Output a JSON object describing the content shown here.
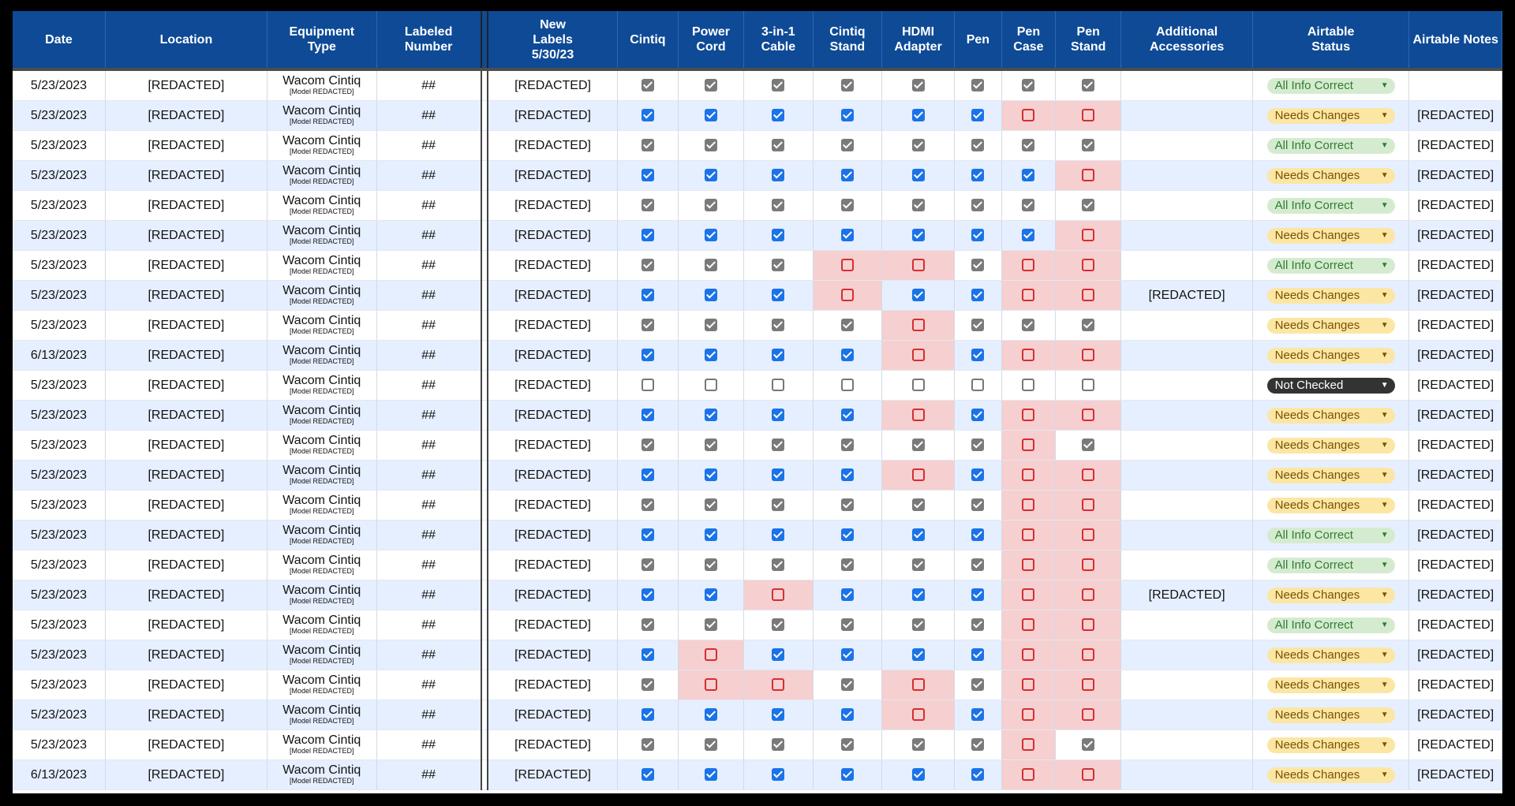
{
  "headers": [
    "Date",
    "Location",
    "Equipment\nType",
    "Labeled\nNumber",
    "New\nLabels\n5/30/23",
    "Cintiq",
    "Power\nCord",
    "3-in-1\nCable",
    "Cintiq\nStand",
    "HDMI\nAdapter",
    "Pen",
    "Pen\nCase",
    "Pen\nStand",
    "Additional\nAccessories",
    "Airtable\nStatus",
    "Airtable Notes"
  ],
  "colors": {
    "header_bg": "#0e4a96",
    "even_row": "#e6efff",
    "missing_cell": "#f6cfd0",
    "check_gray": "#7a7a7a",
    "check_blue": "#1a73e8",
    "missing_box": "#d32f2f"
  },
  "status_styles": {
    "All Info Correct": "correct",
    "Needs Changes": "changes",
    "Not Checked": "notchecked"
  },
  "rows": [
    {
      "date": "5/23/2023",
      "location": "[REDACTED]",
      "equipment": "Wacom Cintiq",
      "model": "[Model REDACTED]",
      "number": "##",
      "new_label": "[REDACTED]",
      "checks": [
        1,
        1,
        1,
        1,
        1,
        1,
        1,
        1
      ],
      "accessories": "",
      "status": "All Info Correct",
      "notes": ""
    },
    {
      "date": "5/23/2023",
      "location": "[REDACTED]",
      "equipment": "Wacom Cintiq",
      "model": "[Model REDACTED]",
      "number": "##",
      "new_label": "[REDACTED]",
      "checks": [
        1,
        1,
        1,
        1,
        1,
        1,
        0,
        0
      ],
      "accessories": "",
      "status": "Needs Changes",
      "notes": "[REDACTED]"
    },
    {
      "date": "5/23/2023",
      "location": "[REDACTED]",
      "equipment": "Wacom Cintiq",
      "model": "[Model REDACTED]",
      "number": "##",
      "new_label": "[REDACTED]",
      "checks": [
        1,
        1,
        1,
        1,
        1,
        1,
        1,
        1
      ],
      "accessories": "",
      "status": "All Info Correct",
      "notes": "[REDACTED]"
    },
    {
      "date": "5/23/2023",
      "location": "[REDACTED]",
      "equipment": "Wacom Cintiq",
      "model": "[Model REDACTED]",
      "number": "##",
      "new_label": "[REDACTED]",
      "checks": [
        1,
        1,
        1,
        1,
        1,
        1,
        1,
        0
      ],
      "accessories": "",
      "status": "Needs Changes",
      "notes": "[REDACTED]"
    },
    {
      "date": "5/23/2023",
      "location": "[REDACTED]",
      "equipment": "Wacom Cintiq",
      "model": "[Model REDACTED]",
      "number": "##",
      "new_label": "[REDACTED]",
      "checks": [
        1,
        1,
        1,
        1,
        1,
        1,
        1,
        1
      ],
      "accessories": "",
      "status": "All Info Correct",
      "notes": "[REDACTED]"
    },
    {
      "date": "5/23/2023",
      "location": "[REDACTED]",
      "equipment": "Wacom Cintiq",
      "model": "[Model REDACTED]",
      "number": "##",
      "new_label": "[REDACTED]",
      "checks": [
        1,
        1,
        1,
        1,
        1,
        1,
        1,
        0
      ],
      "accessories": "",
      "status": "Needs Changes",
      "notes": "[REDACTED]"
    },
    {
      "date": "5/23/2023",
      "location": "[REDACTED]",
      "equipment": "Wacom Cintiq",
      "model": "[Model REDACTED]",
      "number": "##",
      "new_label": "[REDACTED]",
      "checks": [
        1,
        1,
        1,
        0,
        0,
        1,
        0,
        0
      ],
      "accessories": "",
      "status": "All Info Correct",
      "notes": "[REDACTED]"
    },
    {
      "date": "5/23/2023",
      "location": "[REDACTED]",
      "equipment": "Wacom Cintiq",
      "model": "[Model REDACTED]",
      "number": "##",
      "new_label": "[REDACTED]",
      "checks": [
        1,
        1,
        1,
        0,
        1,
        1,
        0,
        0
      ],
      "accessories": "[REDACTED]",
      "status": "Needs Changes",
      "notes": "[REDACTED]"
    },
    {
      "date": "5/23/2023",
      "location": "[REDACTED]",
      "equipment": "Wacom Cintiq",
      "model": "[Model REDACTED]",
      "number": "##",
      "new_label": "[REDACTED]",
      "checks": [
        1,
        1,
        1,
        1,
        0,
        1,
        1,
        1
      ],
      "accessories": "",
      "status": "Needs Changes",
      "notes": "[REDACTED]"
    },
    {
      "date": "6/13/2023",
      "location": "[REDACTED]",
      "equipment": "Wacom Cintiq",
      "model": "[Model REDACTED]",
      "number": "##",
      "new_label": "[REDACTED]",
      "checks": [
        1,
        1,
        1,
        1,
        0,
        1,
        0,
        0
      ],
      "accessories": "",
      "status": "Needs Changes",
      "notes": "[REDACTED]"
    },
    {
      "date": "5/23/2023",
      "location": "[REDACTED]",
      "equipment": "Wacom Cintiq",
      "model": "[Model REDACTED]",
      "number": "##",
      "new_label": "[REDACTED]",
      "checks": [
        -1,
        -1,
        -1,
        -1,
        -1,
        -1,
        -1,
        -1
      ],
      "accessories": "",
      "status": "Not Checked",
      "notes": "[REDACTED]"
    },
    {
      "date": "5/23/2023",
      "location": "[REDACTED]",
      "equipment": "Wacom Cintiq",
      "model": "[Model REDACTED]",
      "number": "##",
      "new_label": "[REDACTED]",
      "checks": [
        1,
        1,
        1,
        1,
        0,
        1,
        0,
        0
      ],
      "accessories": "",
      "status": "Needs Changes",
      "notes": "[REDACTED]"
    },
    {
      "date": "5/23/2023",
      "location": "[REDACTED]",
      "equipment": "Wacom Cintiq",
      "model": "[Model REDACTED]",
      "number": "##",
      "new_label": "[REDACTED]",
      "checks": [
        1,
        1,
        1,
        1,
        1,
        1,
        0,
        1
      ],
      "accessories": "",
      "status": "Needs Changes",
      "notes": "[REDACTED]"
    },
    {
      "date": "5/23/2023",
      "location": "[REDACTED]",
      "equipment": "Wacom Cintiq",
      "model": "[Model REDACTED]",
      "number": "##",
      "new_label": "[REDACTED]",
      "checks": [
        1,
        1,
        1,
        1,
        0,
        1,
        0,
        0
      ],
      "accessories": "",
      "status": "Needs Changes",
      "notes": "[REDACTED]"
    },
    {
      "date": "5/23/2023",
      "location": "[REDACTED]",
      "equipment": "Wacom Cintiq",
      "model": "[Model REDACTED]",
      "number": "##",
      "new_label": "[REDACTED]",
      "checks": [
        1,
        1,
        1,
        1,
        1,
        1,
        0,
        0
      ],
      "accessories": "",
      "status": "Needs Changes",
      "notes": "[REDACTED]"
    },
    {
      "date": "5/23/2023",
      "location": "[REDACTED]",
      "equipment": "Wacom Cintiq",
      "model": "[Model REDACTED]",
      "number": "##",
      "new_label": "[REDACTED]",
      "checks": [
        1,
        1,
        1,
        1,
        1,
        1,
        0,
        0
      ],
      "accessories": "",
      "status": "All Info Correct",
      "notes": "[REDACTED]"
    },
    {
      "date": "5/23/2023",
      "location": "[REDACTED]",
      "equipment": "Wacom Cintiq",
      "model": "[Model REDACTED]",
      "number": "##",
      "new_label": "[REDACTED]",
      "checks": [
        1,
        1,
        1,
        1,
        1,
        1,
        0,
        0
      ],
      "accessories": "",
      "status": "All Info Correct",
      "notes": "[REDACTED]"
    },
    {
      "date": "5/23/2023",
      "location": "[REDACTED]",
      "equipment": "Wacom Cintiq",
      "model": "[Model REDACTED]",
      "number": "##",
      "new_label": "[REDACTED]",
      "checks": [
        1,
        1,
        0,
        1,
        1,
        1,
        0,
        0
      ],
      "accessories": "[REDACTED]",
      "status": "Needs Changes",
      "notes": "[REDACTED]"
    },
    {
      "date": "5/23/2023",
      "location": "[REDACTED]",
      "equipment": "Wacom Cintiq",
      "model": "[Model REDACTED]",
      "number": "##",
      "new_label": "[REDACTED]",
      "checks": [
        1,
        1,
        1,
        1,
        1,
        1,
        0,
        0
      ],
      "accessories": "",
      "status": "All Info Correct",
      "notes": "[REDACTED]"
    },
    {
      "date": "5/23/2023",
      "location": "[REDACTED]",
      "equipment": "Wacom Cintiq",
      "model": "[Model REDACTED]",
      "number": "##",
      "new_label": "[REDACTED]",
      "checks": [
        1,
        0,
        1,
        1,
        1,
        1,
        0,
        0
      ],
      "accessories": "",
      "status": "Needs Changes",
      "notes": "[REDACTED]"
    },
    {
      "date": "5/23/2023",
      "location": "[REDACTED]",
      "equipment": "Wacom Cintiq",
      "model": "[Model REDACTED]",
      "number": "##",
      "new_label": "[REDACTED]",
      "checks": [
        1,
        0,
        0,
        1,
        0,
        1,
        0,
        0
      ],
      "accessories": "",
      "status": "Needs Changes",
      "notes": "[REDACTED]"
    },
    {
      "date": "5/23/2023",
      "location": "[REDACTED]",
      "equipment": "Wacom Cintiq",
      "model": "[Model REDACTED]",
      "number": "##",
      "new_label": "[REDACTED]",
      "checks": [
        1,
        1,
        1,
        1,
        0,
        1,
        0,
        0
      ],
      "accessories": "",
      "status": "Needs Changes",
      "notes": "[REDACTED]"
    },
    {
      "date": "5/23/2023",
      "location": "[REDACTED]",
      "equipment": "Wacom Cintiq",
      "model": "[Model REDACTED]",
      "number": "##",
      "new_label": "[REDACTED]",
      "checks": [
        1,
        1,
        1,
        1,
        1,
        1,
        0,
        1
      ],
      "accessories": "",
      "status": "Needs Changes",
      "notes": "[REDACTED]"
    },
    {
      "date": "6/13/2023",
      "location": "[REDACTED]",
      "equipment": "Wacom Cintiq",
      "model": "[Model REDACTED]",
      "number": "##",
      "new_label": "[REDACTED]",
      "checks": [
        1,
        1,
        1,
        1,
        1,
        1,
        0,
        0
      ],
      "accessories": "",
      "status": "Needs Changes",
      "notes": "[REDACTED]"
    }
  ]
}
